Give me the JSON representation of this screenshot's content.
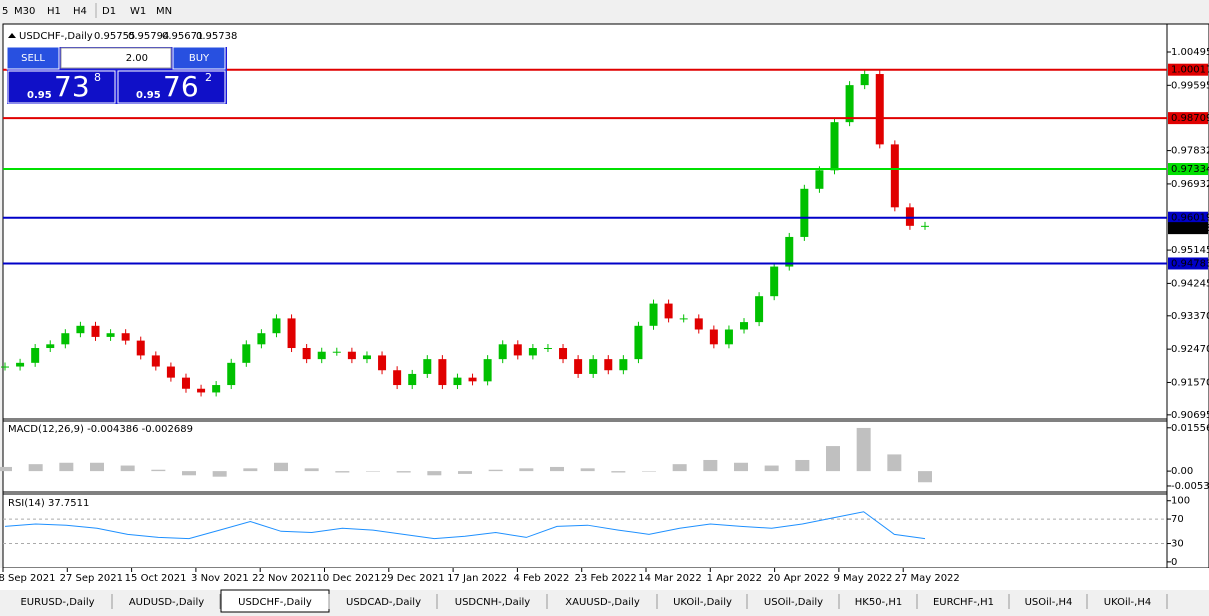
{
  "toolbar": {
    "timeframes": [
      "5",
      "M30",
      "H1",
      "H4",
      "D1",
      "W1",
      "MN"
    ]
  },
  "info": {
    "symbol": "USDCHF-,Daily",
    "open": "0.95755",
    "high": "0.95794",
    "low": "0.95671",
    "close": "0.95738"
  },
  "trade_panel": {
    "sell": "SELL",
    "buy": "BUY",
    "lots": "2.00",
    "sell_price": {
      "big": "0.95",
      "pips": "73",
      "frac": "8"
    },
    "buy_price": {
      "big": "0.95",
      "pips": "76",
      "frac": "2"
    }
  },
  "price_chart": {
    "type": "candlestick",
    "ylim": [
      0.9061,
      1.0117
    ],
    "yticks": [
      1.00495,
      0.99595,
      0.97832,
      0.96932,
      0.95145,
      0.94245,
      {
        "value": 0.9337,
        "label": "0.93370"
      },
      {
        "value": 0.9247,
        "label": "0.92470"
      },
      {
        "value": 0.9157,
        "label": "0.91570"
      },
      0.90695
    ],
    "levels": [
      {
        "value": 1.00017,
        "color": "#e00000"
      },
      {
        "value": 0.98709,
        "color": "#e00000"
      },
      {
        "value": 0.97334,
        "color": "#00e000"
      },
      {
        "value": 0.96019,
        "color": "#0000c8"
      },
      {
        "value": 0.94783,
        "color": "#0000c8"
      }
    ],
    "current_price": 0.95738,
    "up_color": "#00c000",
    "down_color": "#e00000",
    "closes": [
      0.92,
      0.921,
      0.925,
      0.926,
      0.929,
      0.931,
      0.928,
      0.929,
      0.927,
      0.923,
      0.92,
      0.917,
      0.914,
      0.913,
      0.915,
      0.921,
      0.926,
      0.929,
      0.933,
      0.925,
      0.922,
      0.924,
      0.924,
      0.922,
      0.923,
      0.919,
      0.915,
      0.918,
      0.922,
      0.915,
      0.917,
      0.916,
      0.922,
      0.926,
      0.923,
      0.925,
      0.925,
      0.922,
      0.918,
      0.922,
      0.919,
      0.922,
      0.931,
      0.937,
      0.933,
      0.933,
      0.93,
      0.926,
      0.93,
      0.932,
      0.939,
      0.947,
      0.955,
      0.968,
      0.973,
      0.986,
      0.996,
      0.999,
      0.98,
      0.963,
      0.958,
      0.958
    ]
  },
  "macd": {
    "type": "bar",
    "label": "MACD(12,26,9) -0.004386 -0.002689",
    "ylim": [
      -0.0075,
      0.018
    ],
    "yticks": [
      0.015562,
      {
        "value": 0,
        "label": "0.00"
      },
      -0.005335
    ],
    "color": "#c0c0c0",
    "values": [
      0.0015,
      0.0025,
      0.003,
      0.003,
      0.002,
      0.0005,
      -0.0015,
      -0.002,
      0.001,
      0.003,
      0.001,
      -0.0005,
      0.0,
      -0.0005,
      -0.0015,
      -0.001,
      0.0005,
      0.001,
      0.0015,
      0.001,
      -0.0005,
      0.0,
      0.0025,
      0.004,
      0.003,
      0.002,
      0.004,
      0.009,
      0.0155,
      0.006,
      -0.004
    ]
  },
  "rsi": {
    "type": "line",
    "label": "RSI(14) 37.7511",
    "ylim": [
      -10,
      111
    ],
    "yticks": [
      100,
      70,
      30,
      0
    ],
    "levels": [
      70,
      30
    ],
    "color": "#1e90ff",
    "values": [
      58,
      62,
      60,
      55,
      45,
      40,
      38,
      52,
      66,
      50,
      48,
      55,
      52,
      45,
      38,
      42,
      48,
      40,
      58,
      60,
      52,
      45,
      55,
      62,
      58,
      55,
      62,
      72,
      82,
      45,
      38
    ]
  },
  "x_labels": [
    "8 Sep 2021",
    "27 Sep 2021",
    "15 Oct 2021",
    "3 Nov 2021",
    "22 Nov 2021",
    "10 Dec 2021",
    "29 Dec 2021",
    "17 Jan 2022",
    "4 Feb 2022",
    "23 Feb 2022",
    "14 Mar 2022",
    "1 Apr 2022",
    "20 Apr 2022",
    "9 May 2022",
    "27 May 2022"
  ],
  "tabs": [
    "EURUSD-,Daily",
    "AUDUSD-,Daily",
    "USDCHF-,Daily",
    "USDCAD-,Daily",
    "USDCNH-,Daily",
    "XAUUSD-,Daily",
    "UKOil-,Daily",
    "USOil-,Daily",
    "HK50-,H1",
    "EURCHF-,H1",
    "USOil-,H4",
    "UKOil-,H4"
  ],
  "active_tab": "USDCHF-,Daily"
}
